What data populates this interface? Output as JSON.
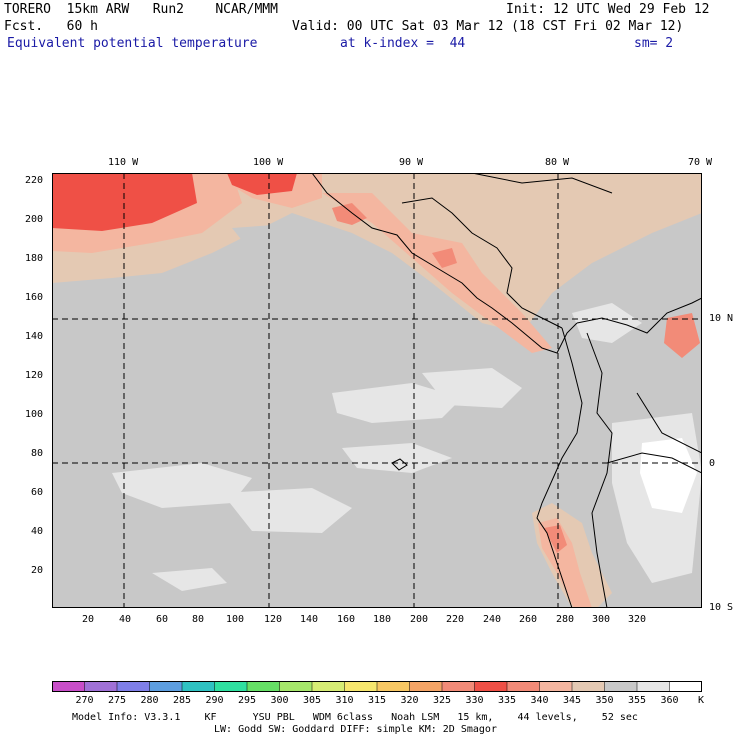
{
  "header": {
    "model": "TORERO  15km ARW   Run2    NCAR/MMM",
    "init": "Init: 12 UTC Wed 29 Feb 12",
    "fcst": "Fcst.   60 h",
    "valid": "Valid: 00 UTC Sat 03 Mar 12 (18 CST Fri 02 Mar 12)",
    "field": "Equivalent potential temperature",
    "kindex": "at k-index =  44",
    "sm": "sm= 2"
  },
  "map": {
    "lon_labels": [
      "110 W",
      "100 W",
      "90 W",
      "80 W",
      "70 W"
    ],
    "lat_labels": [
      "10 N",
      "0",
      "10 S"
    ],
    "x_ticks": [
      "20",
      "40",
      "60",
      "80",
      "100",
      "120",
      "140",
      "160",
      "180",
      "200",
      "220",
      "240",
      "260",
      "280",
      "300",
      "320"
    ],
    "y_ticks": [
      "220",
      "200",
      "180",
      "160",
      "140",
      "120",
      "100",
      "80",
      "60",
      "40",
      "20"
    ],
    "colors": {
      "ocean_gray": "#c8c8c8",
      "light_gray": "#e6e6e6",
      "tan": "#e4c9b3",
      "peach": "#f4b6a0",
      "salmon": "#f28b78",
      "red": "#ef5046",
      "coast": "#000000"
    }
  },
  "colorbar": {
    "labels": [
      "270",
      "275",
      "280",
      "285",
      "290",
      "295",
      "300",
      "305",
      "310",
      "315",
      "320",
      "325",
      "330",
      "335",
      "340",
      "345",
      "350",
      "355",
      "360"
    ],
    "unit": "K",
    "colors": [
      "#c84ec8",
      "#a071d6",
      "#7f7fe8",
      "#5d9ee0",
      "#2fc2c2",
      "#2fe0a0",
      "#66e066",
      "#a6e66b",
      "#d6ec75",
      "#f6e66e",
      "#f7c764",
      "#f4a466",
      "#f28b78",
      "#ef5046",
      "#f28b78",
      "#f4b6a0",
      "#e4c9b3",
      "#c8c8c8",
      "#e6e6e6",
      "#ffffff"
    ]
  },
  "footer": {
    "line1": "Model Info: V3.3.1    KF      YSU PBL   WDM 6class   Noah LSM   15 km,    44 levels,    52 sec",
    "line2": "LW: Godd SW: Goddard DIFF: simple KM: 2D Smagor"
  }
}
